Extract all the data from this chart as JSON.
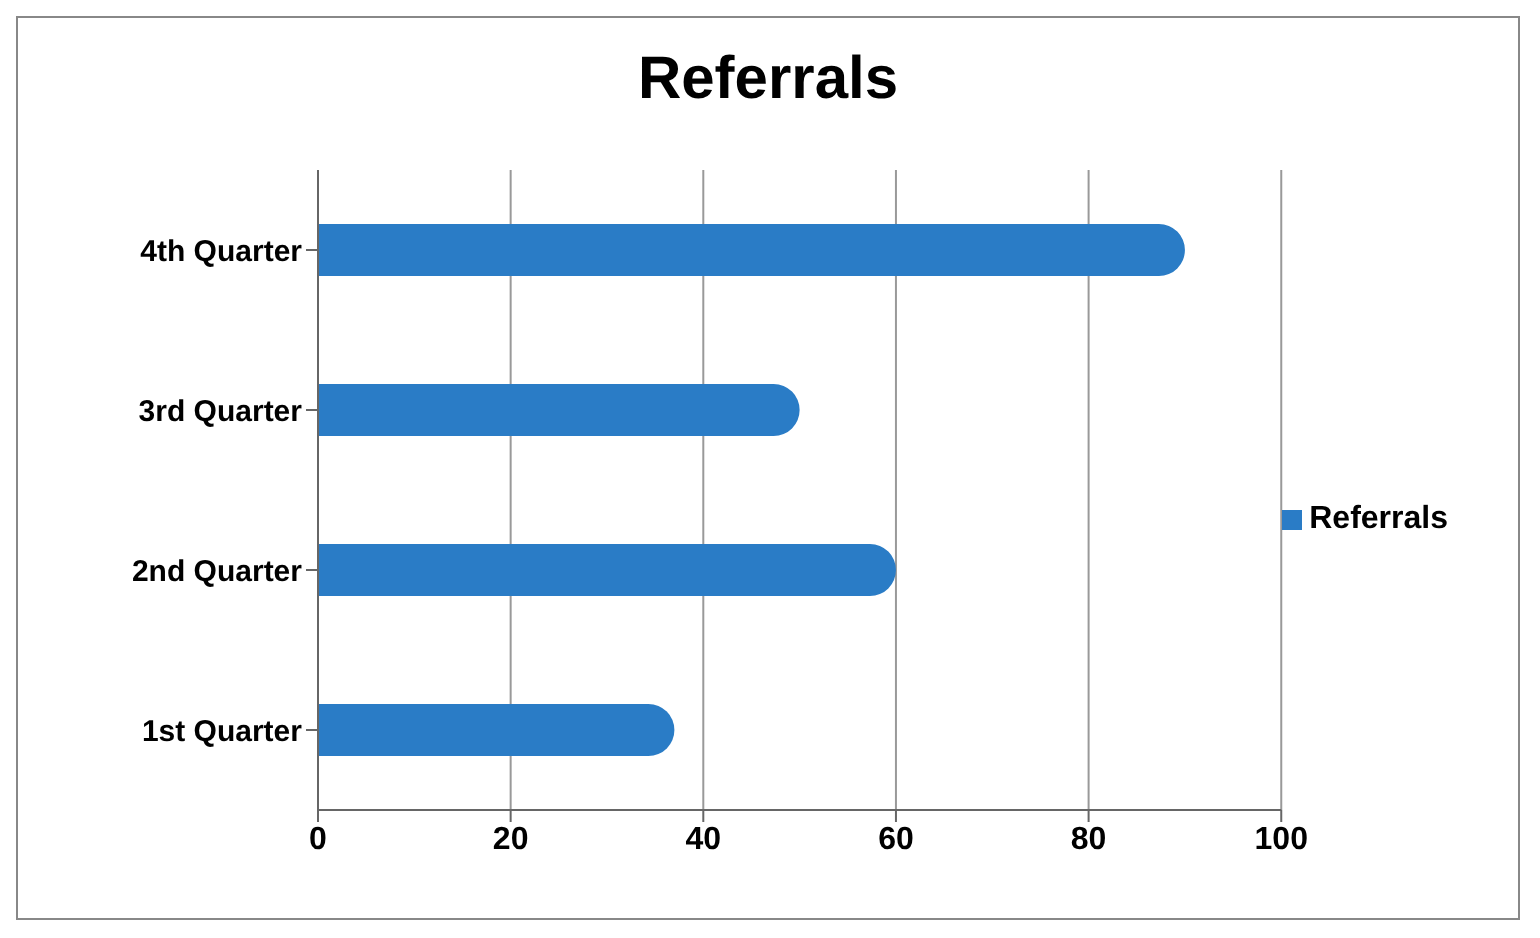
{
  "chart_data": {
    "type": "bar",
    "orientation": "horizontal",
    "title": "Referrals",
    "categories": [
      "4th Quarter",
      "3rd Quarter",
      "2nd Quarter",
      "1st Quarter"
    ],
    "series": [
      {
        "name": "Referrals",
        "color": "#2a7cc6",
        "values": [
          90,
          50,
          60,
          37
        ]
      }
    ],
    "xlim": [
      0,
      100
    ],
    "xticks": [
      0,
      20,
      40,
      60,
      80,
      100
    ],
    "grid": "x",
    "legend": "right"
  }
}
